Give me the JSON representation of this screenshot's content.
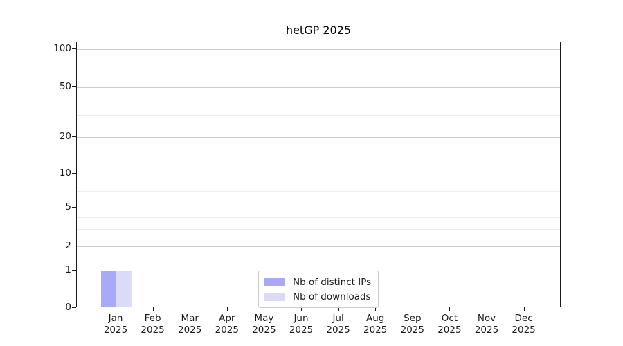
{
  "chart_data": {
    "type": "bar",
    "title": "hetGP 2025",
    "x_axis": {
      "categories": [
        "Jan",
        "Feb",
        "Mar",
        "Apr",
        "May",
        "Jun",
        "Jul",
        "Aug",
        "Sep",
        "Oct",
        "Nov",
        "Dec"
      ],
      "year_label": "2025"
    },
    "y_axis": {
      "ticks": [
        0,
        1,
        2,
        5,
        10,
        20,
        50,
        100
      ],
      "minor_ticks": [
        3,
        4,
        6,
        7,
        8,
        9,
        30,
        40,
        60,
        70,
        80,
        90
      ],
      "scale": "log (zero pinned at axis base)",
      "ylim": [
        0,
        100
      ],
      "grid": "horizontal only"
    },
    "series": [
      {
        "name": "Nb of distinct IPs",
        "color": "#a9a9f8",
        "values": [
          1,
          0,
          0,
          0,
          0,
          0,
          0,
          0,
          0,
          0,
          0,
          0
        ]
      },
      {
        "name": "Nb of downloads",
        "color": "#dbdbf8",
        "values": [
          1,
          0,
          0,
          0,
          0,
          0,
          0,
          0,
          0,
          0,
          0,
          0
        ]
      }
    ],
    "legend": {
      "position": "lower center",
      "entries": [
        "Nb of distinct IPs",
        "Nb of downloads"
      ]
    }
  }
}
